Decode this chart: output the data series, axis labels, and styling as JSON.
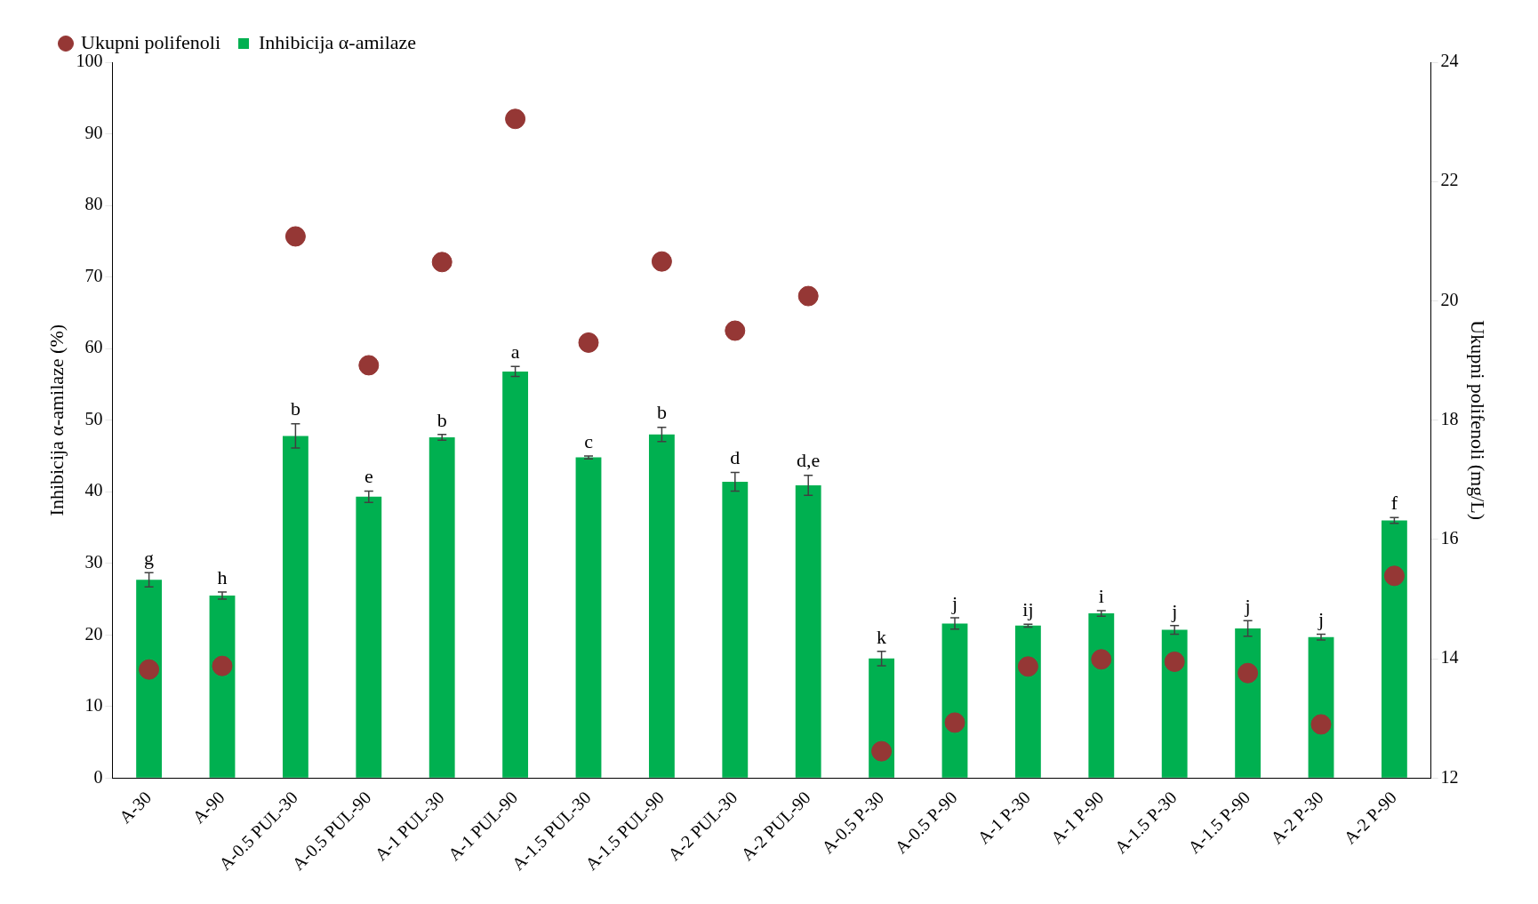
{
  "chart_data": {
    "type": "bar",
    "ylabel": "Inhibicija α-amilaze (%)",
    "y2label": "Ukupni polifenoli (mg/L)",
    "categories": [
      "A-30",
      "A-90",
      "A-0.5 PUL-30",
      "A-0.5 PUL-90",
      "A-1 PUL-30",
      "A-1 PUL-90",
      "A-1.5 PUL-30",
      "A-1.5 PUL-90",
      "A-2 PUL-30",
      "A-2 PUL-90",
      "A-0.5 P-30",
      "A-0.5 P-90",
      "A-1 P-30",
      "A-1 P-90",
      "A-1.5 P-30",
      "A-1.5 P-90",
      "A-2 P-30",
      "A-2 P-90"
    ],
    "series": [
      {
        "name": "Inhibicija α-amilaze",
        "color": "#00b050",
        "values": [
          27.7,
          25.5,
          47.8,
          39.3,
          47.6,
          56.8,
          44.8,
          48.0,
          41.4,
          40.9,
          16.7,
          21.6,
          21.3,
          23.0,
          20.7,
          20.9,
          19.7,
          36.0
        ],
        "errors": [
          1,
          0.5,
          1.7,
          0.8,
          0.4,
          0.7,
          0.2,
          1,
          1.3,
          1.4,
          1,
          0.8,
          0.2,
          0.4,
          0.6,
          1.1,
          0.4,
          0.4
        ],
        "value_labels": [
          "g",
          "h",
          "b",
          "e",
          "b",
          "a",
          "c",
          "b",
          "d",
          "d,e",
          "k",
          "j",
          "ij",
          "i",
          "j",
          "j",
          "j",
          "f"
        ]
      },
      {
        "name": "Ukupni polifenoli",
        "type": "scatter",
        "axis": "y2",
        "color": "#953735",
        "marker": "circle",
        "x": [
          "A-30",
          "A-90",
          "A-0.5 PUL-30",
          "A-0.5 PUL-90",
          "A-1 PUL-30",
          "A-1 PUL-90",
          "A-1.5 PUL-30",
          "A-1.5 PUL-90",
          "A-2 PUL-30",
          "A-2 PUL-90",
          "A-0.5 P-30",
          "A-0.5 P-90",
          "A-1 P-30",
          "A-1 P-90",
          "A-1.5 P-30",
          "A-1.5 P-90",
          "A-2 P-30",
          "A-2 P-90"
        ],
        "values": [
          13.82,
          13.88,
          21.08,
          18.92,
          20.65,
          23.05,
          19.3,
          20.66,
          19.5,
          20.08,
          12.45,
          12.93,
          13.87,
          13.99,
          13.95,
          13.76,
          12.9,
          15.39
        ]
      }
    ],
    "ylim": [
      0,
      100
    ],
    "yticks": [
      0,
      10,
      20,
      30,
      40,
      50,
      60,
      70,
      80,
      90,
      100
    ],
    "y2lim": [
      12,
      24
    ],
    "y2ticks": [
      12,
      14,
      16,
      18,
      20,
      22,
      24
    ],
    "grid": false,
    "legend": "top left"
  }
}
